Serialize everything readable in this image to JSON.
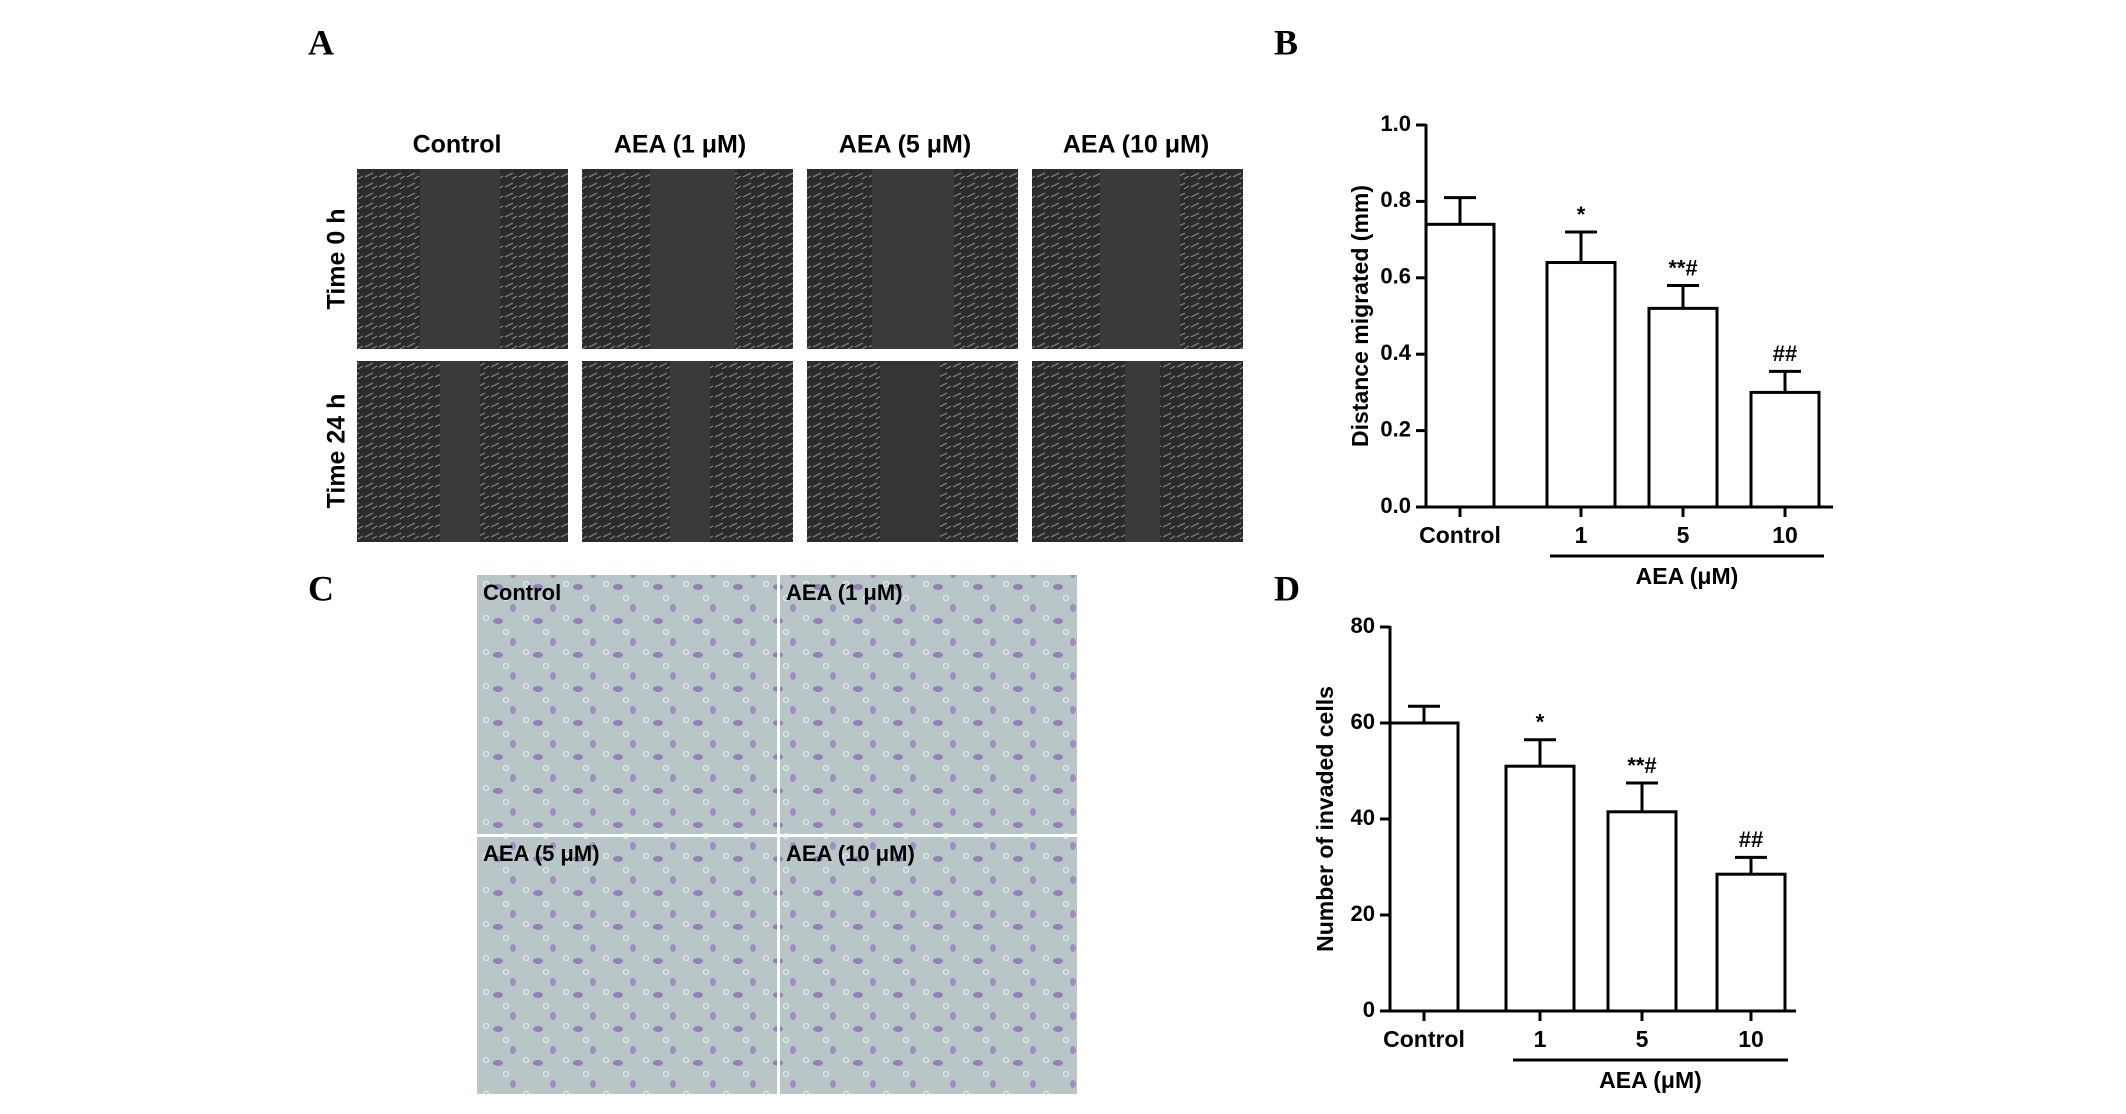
{
  "panel_labels": [
    "A",
    "B",
    "C",
    "D"
  ],
  "panel_a": {
    "columns": [
      "Control",
      "AEA (1 μM)",
      "AEA (5 μM)",
      "AEA (10 μM)"
    ],
    "rows": [
      "Time 0 h",
      "Time 24 h"
    ]
  },
  "panel_c": {
    "images": [
      "Control",
      "AEA (1 μM)",
      "AEA (5 μM)",
      "AEA (10 μM)"
    ]
  },
  "chart_data": [
    {
      "type": "bar",
      "y_label": "Distance migrated (mm)",
      "categories": [
        "Control",
        "1",
        "5",
        "10"
      ],
      "group_label": "AEA (μM)",
      "values": [
        0.74,
        0.64,
        0.52,
        0.3
      ],
      "errors": [
        0.07,
        0.08,
        0.06,
        0.055
      ],
      "annotations": [
        null,
        "*",
        "**#",
        "##"
      ],
      "color": "#ffffff",
      "ylim": [
        0,
        1.0
      ],
      "yticks": [
        {
          "value": 0,
          "label": "0.0"
        },
        {
          "value": 0.2,
          "label": "0.2"
        },
        {
          "value": 0.4,
          "label": "0.4"
        },
        {
          "value": 0.6,
          "label": "0.6"
        },
        {
          "value": 0.8,
          "label": "0.8"
        },
        {
          "value": 1.0,
          "label": "1.0"
        }
      ]
    },
    {
      "type": "bar",
      "y_label": "Number of invaded cells",
      "categories": [
        "Control",
        "1",
        "5",
        "10"
      ],
      "group_label": "AEA (μM)",
      "values": [
        60,
        51,
        41.5,
        28.5
      ],
      "errors": [
        3.5,
        5.5,
        6,
        3.5
      ],
      "annotations": [
        null,
        "*",
        "**#",
        "##"
      ],
      "color": "#ffffff",
      "ylim": [
        0,
        80
      ],
      "yticks": [
        0,
        20,
        40,
        60,
        80
      ]
    }
  ]
}
